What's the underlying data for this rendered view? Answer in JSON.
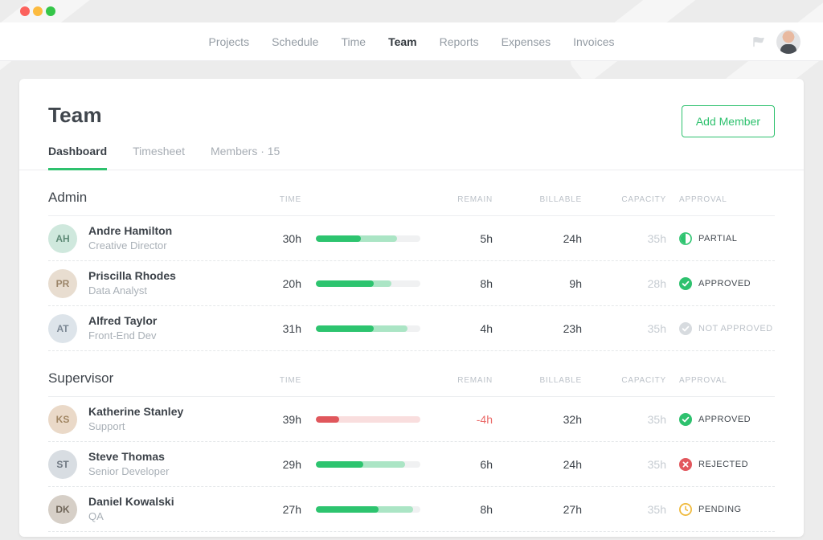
{
  "window": {
    "traffic_lights": {
      "close": "#fc625d",
      "minimize": "#fcbb40",
      "zoom": "#35c649"
    }
  },
  "nav": {
    "items": [
      {
        "label": "Projects",
        "active": false
      },
      {
        "label": "Schedule",
        "active": false
      },
      {
        "label": "Time",
        "active": false
      },
      {
        "label": "Team",
        "active": true
      },
      {
        "label": "Reports",
        "active": false
      },
      {
        "label": "Expenses",
        "active": false
      },
      {
        "label": "Invoices",
        "active": false
      }
    ],
    "icons": [
      "flag-icon",
      "user-avatar"
    ]
  },
  "page": {
    "title": "Team",
    "add_member_label": "Add Member"
  },
  "tabs": [
    {
      "label": "Dashboard",
      "active": true
    },
    {
      "label": "Timesheet",
      "active": false
    },
    {
      "label": "Members · 15",
      "active": false
    }
  ],
  "columns": [
    "Time",
    "Remain",
    "Billable",
    "Capacity",
    "Approval"
  ],
  "sections": [
    {
      "name": "Admin",
      "members": [
        {
          "name": "Andre Hamilton",
          "role": "Creative Director",
          "time": "30h",
          "remain": "5h",
          "remain_negative": false,
          "billable": "24h",
          "capacity": "35h",
          "approval": "Partial",
          "approval_type": "partial",
          "bar": {
            "color": "green",
            "dark_pct": 43,
            "light_pct": 78
          },
          "avatar_bg": "#cfe8dd",
          "avatar_fg": "#5d8a76"
        },
        {
          "name": "Priscilla Rhodes",
          "role": "Data Analyst",
          "time": "20h",
          "remain": "8h",
          "remain_negative": false,
          "billable": "9h",
          "capacity": "28h",
          "approval": "Approved",
          "approval_type": "approved",
          "bar": {
            "color": "green",
            "dark_pct": 55,
            "light_pct": 72
          },
          "avatar_bg": "#e8ddd0",
          "avatar_fg": "#9a8468"
        },
        {
          "name": "Alfred Taylor",
          "role": "Front-End Dev",
          "time": "31h",
          "remain": "4h",
          "remain_negative": false,
          "billable": "23h",
          "capacity": "35h",
          "approval": "Not Approved",
          "approval_type": "not_approved",
          "bar": {
            "color": "green",
            "dark_pct": 55,
            "light_pct": 88
          },
          "avatar_bg": "#dde4ea",
          "avatar_fg": "#7c8894"
        }
      ]
    },
    {
      "name": "Supervisor",
      "members": [
        {
          "name": "Katherine Stanley",
          "role": "Support",
          "time": "39h",
          "remain": "-4h",
          "remain_negative": true,
          "billable": "32h",
          "capacity": "35h",
          "approval": "Approved",
          "approval_type": "approved",
          "bar": {
            "color": "red",
            "dark_pct": 22,
            "light_pct": 100
          },
          "avatar_bg": "#ead9c8",
          "avatar_fg": "#a08562"
        },
        {
          "name": "Steve Thomas",
          "role": "Senior Developer",
          "time": "29h",
          "remain": "6h",
          "remain_negative": false,
          "billable": "24h",
          "capacity": "35h",
          "approval": "Rejected",
          "approval_type": "rejected",
          "bar": {
            "color": "green",
            "dark_pct": 45,
            "light_pct": 85
          },
          "avatar_bg": "#d8dde2",
          "avatar_fg": "#6d7680"
        },
        {
          "name": "Daniel Kowalski",
          "role": "QA",
          "time": "27h",
          "remain": "8h",
          "remain_negative": false,
          "billable": "27h",
          "capacity": "35h",
          "approval": "Pending",
          "approval_type": "pending",
          "bar": {
            "color": "green",
            "dark_pct": 60,
            "light_pct": 93
          },
          "avatar_bg": "#d6cfc7",
          "avatar_fg": "#6f6558"
        }
      ]
    }
  ],
  "colors": {
    "accent": "#2ec16e",
    "bar": {
      "green": {
        "dark": "#2dc46f",
        "light": "#abe5c5"
      },
      "red": {
        "dark": "#e0575c",
        "light": "#f9dede"
      }
    },
    "status": {
      "approved": "#2ec16e",
      "partial": "#2dc46f",
      "rejected": "#e2575d",
      "pending": "#efb838",
      "not_approved": "#d7dbdf"
    },
    "negative_text": "#ea6a68"
  }
}
